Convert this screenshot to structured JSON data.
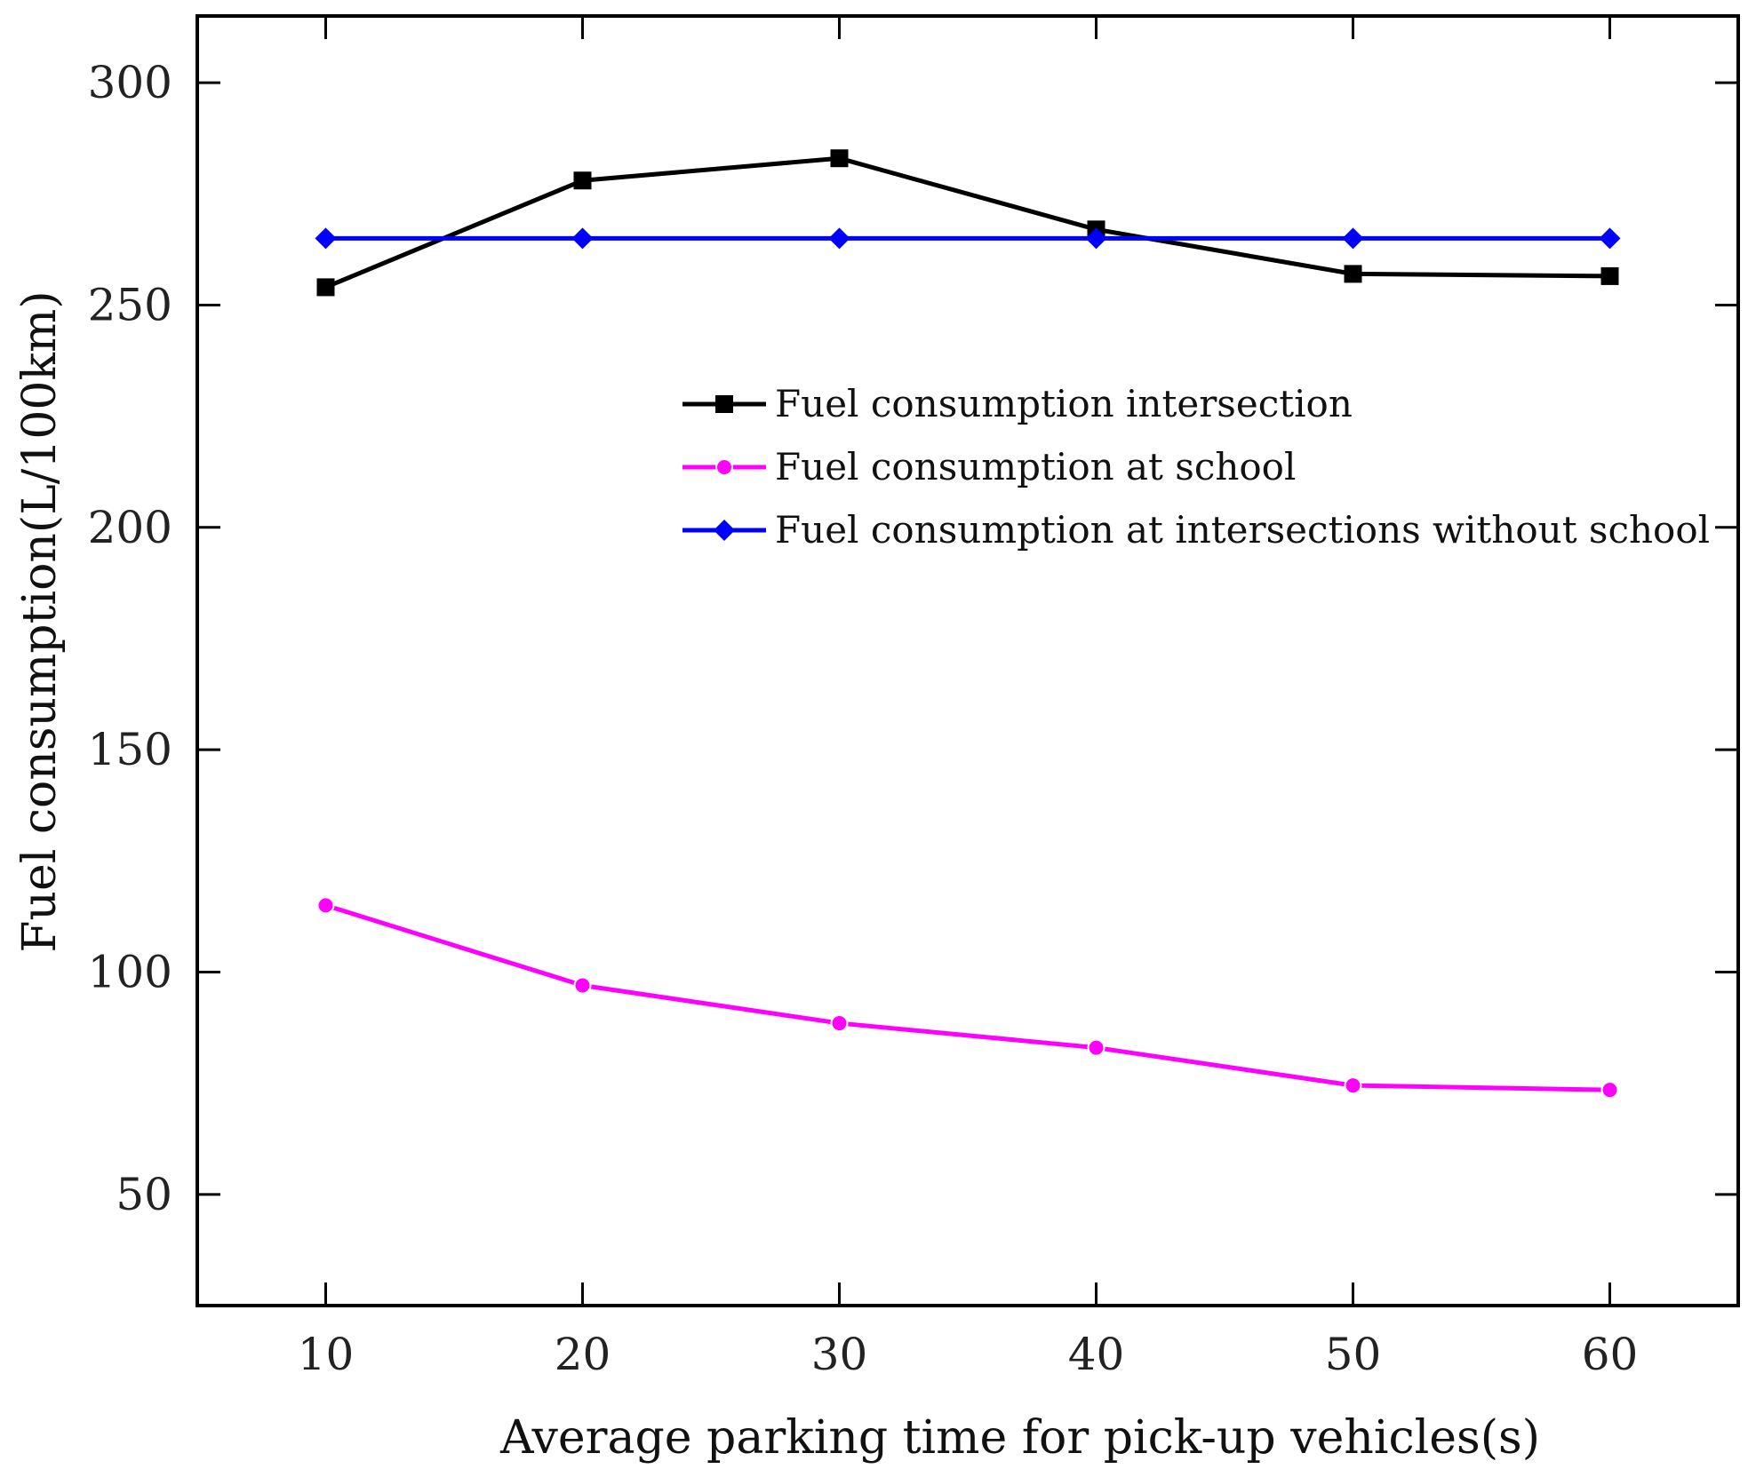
{
  "chart_data": {
    "type": "line",
    "title": "",
    "xlabel": "Average parking time for pick-up vehicles(s)",
    "ylabel": "Fuel consumption(L/100km)",
    "x": [
      10,
      20,
      30,
      40,
      50,
      60
    ],
    "xlim": [
      5,
      65
    ],
    "ylim": [
      25,
      315
    ],
    "xticks": [
      "10",
      "20",
      "30",
      "40",
      "50",
      "60"
    ],
    "yticks": [
      "50",
      "100",
      "150",
      "200",
      "250",
      "300"
    ],
    "legend_position": "center-right",
    "grid": false,
    "series": [
      {
        "name": "Fuel consumption intersection",
        "color": "#000000",
        "marker": "square",
        "values": [
          254,
          278,
          283,
          267,
          257,
          256.5
        ]
      },
      {
        "name": "Fuel consumption at school",
        "color": "#ff00ff",
        "marker": "circle",
        "values": [
          115,
          97,
          88.5,
          83,
          74.5,
          73.5
        ]
      },
      {
        "name": "Fuel consumption at intersections without school",
        "color": "#0000ff",
        "marker": "diamond",
        "values": [
          265,
          265,
          265,
          265,
          265,
          265
        ]
      }
    ]
  }
}
